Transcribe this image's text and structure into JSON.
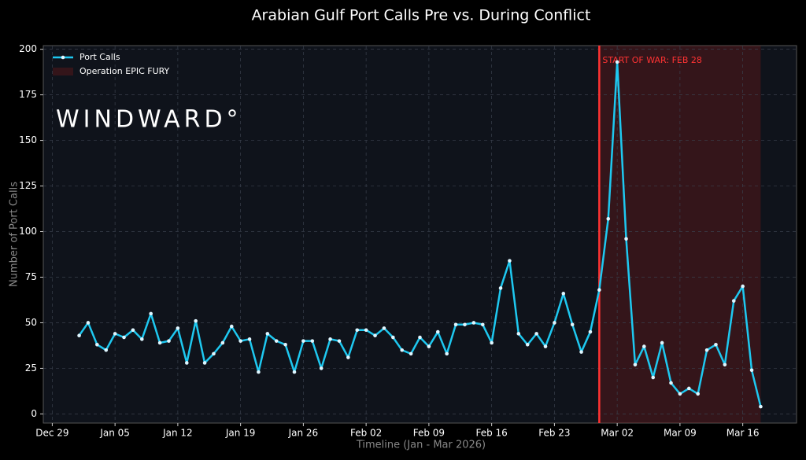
{
  "chart_data": {
    "type": "line",
    "title": "Arabian Gulf Port Calls Pre vs. During Conflict",
    "x_label": "Timeline (Jan - Mar 2026)",
    "y_label": "Number of Port Calls",
    "watermark": "WINDWARD°",
    "x": [
      "2026-01-01",
      "2026-01-02",
      "2026-01-03",
      "2026-01-04",
      "2026-01-05",
      "2026-01-06",
      "2026-01-07",
      "2026-01-08",
      "2026-01-09",
      "2026-01-10",
      "2026-01-11",
      "2026-01-12",
      "2026-01-13",
      "2026-01-14",
      "2026-01-15",
      "2026-01-16",
      "2026-01-17",
      "2026-01-18",
      "2026-01-19",
      "2026-01-20",
      "2026-01-21",
      "2026-01-22",
      "2026-01-23",
      "2026-01-24",
      "2026-01-25",
      "2026-01-26",
      "2026-01-27",
      "2026-01-28",
      "2026-01-29",
      "2026-01-30",
      "2026-01-31",
      "2026-02-01",
      "2026-02-02",
      "2026-02-03",
      "2026-02-04",
      "2026-02-05",
      "2026-02-06",
      "2026-02-07",
      "2026-02-08",
      "2026-02-09",
      "2026-02-10",
      "2026-02-11",
      "2026-02-12",
      "2026-02-13",
      "2026-02-14",
      "2026-02-15",
      "2026-02-16",
      "2026-02-17",
      "2026-02-18",
      "2026-02-19",
      "2026-02-20",
      "2026-02-21",
      "2026-02-22",
      "2026-02-23",
      "2026-02-24",
      "2026-02-25",
      "2026-02-26",
      "2026-02-27",
      "2026-02-28",
      "2026-03-01",
      "2026-03-02",
      "2026-03-03",
      "2026-03-04",
      "2026-03-05",
      "2026-03-06",
      "2026-03-07",
      "2026-03-08",
      "2026-03-09",
      "2026-03-10",
      "2026-03-11",
      "2026-03-12",
      "2026-03-13",
      "2026-03-14",
      "2026-03-15",
      "2026-03-16",
      "2026-03-17",
      "2026-03-18"
    ],
    "series": [
      {
        "name": "Port Calls",
        "color": "#1ec8f0",
        "values": [
          43,
          50,
          38,
          35,
          44,
          42,
          46,
          41,
          55,
          39,
          40,
          47,
          28,
          51,
          28,
          33,
          39,
          48,
          40,
          41,
          23,
          44,
          40,
          38,
          23,
          40,
          40,
          25,
          41,
          40,
          31,
          46,
          46,
          43,
          47,
          42,
          35,
          33,
          42,
          37,
          45,
          33,
          49,
          49,
          50,
          49,
          39,
          69,
          84,
          44,
          38,
          44,
          37,
          50,
          66,
          49,
          34,
          45,
          68,
          107,
          193,
          96,
          27,
          37,
          20,
          39,
          17,
          11,
          14,
          11,
          35,
          38,
          27,
          62,
          70,
          24,
          4
        ]
      }
    ],
    "shaded_region": {
      "start": "2026-02-28",
      "end": "2026-03-18",
      "label": "Operation EPIC FURY",
      "color": "#8b1a1a"
    },
    "vline": {
      "x": "2026-02-28",
      "label": "START OF WAR: FEB 28",
      "color": "#ff3333"
    },
    "xlim": [
      "2025-12-28",
      "2026-03-22"
    ],
    "xticks": [
      {
        "value": "2025-12-29",
        "label": "Dec 29"
      },
      {
        "value": "2026-01-05",
        "label": "Jan 05"
      },
      {
        "value": "2026-01-12",
        "label": "Jan 12"
      },
      {
        "value": "2026-01-19",
        "label": "Jan 19"
      },
      {
        "value": "2026-01-26",
        "label": "Jan 26"
      },
      {
        "value": "2026-02-02",
        "label": "Feb 02"
      },
      {
        "value": "2026-02-09",
        "label": "Feb 09"
      },
      {
        "value": "2026-02-16",
        "label": "Feb 16"
      },
      {
        "value": "2026-02-23",
        "label": "Feb 23"
      },
      {
        "value": "2026-03-02",
        "label": "Mar 02"
      },
      {
        "value": "2026-03-09",
        "label": "Mar 09"
      },
      {
        "value": "2026-03-16",
        "label": "Mar 16"
      }
    ],
    "ylim": [
      -5,
      202
    ],
    "yticks": [
      0,
      25,
      50,
      75,
      100,
      125,
      150,
      175,
      200
    ],
    "grid": true,
    "legend": "upper left"
  }
}
